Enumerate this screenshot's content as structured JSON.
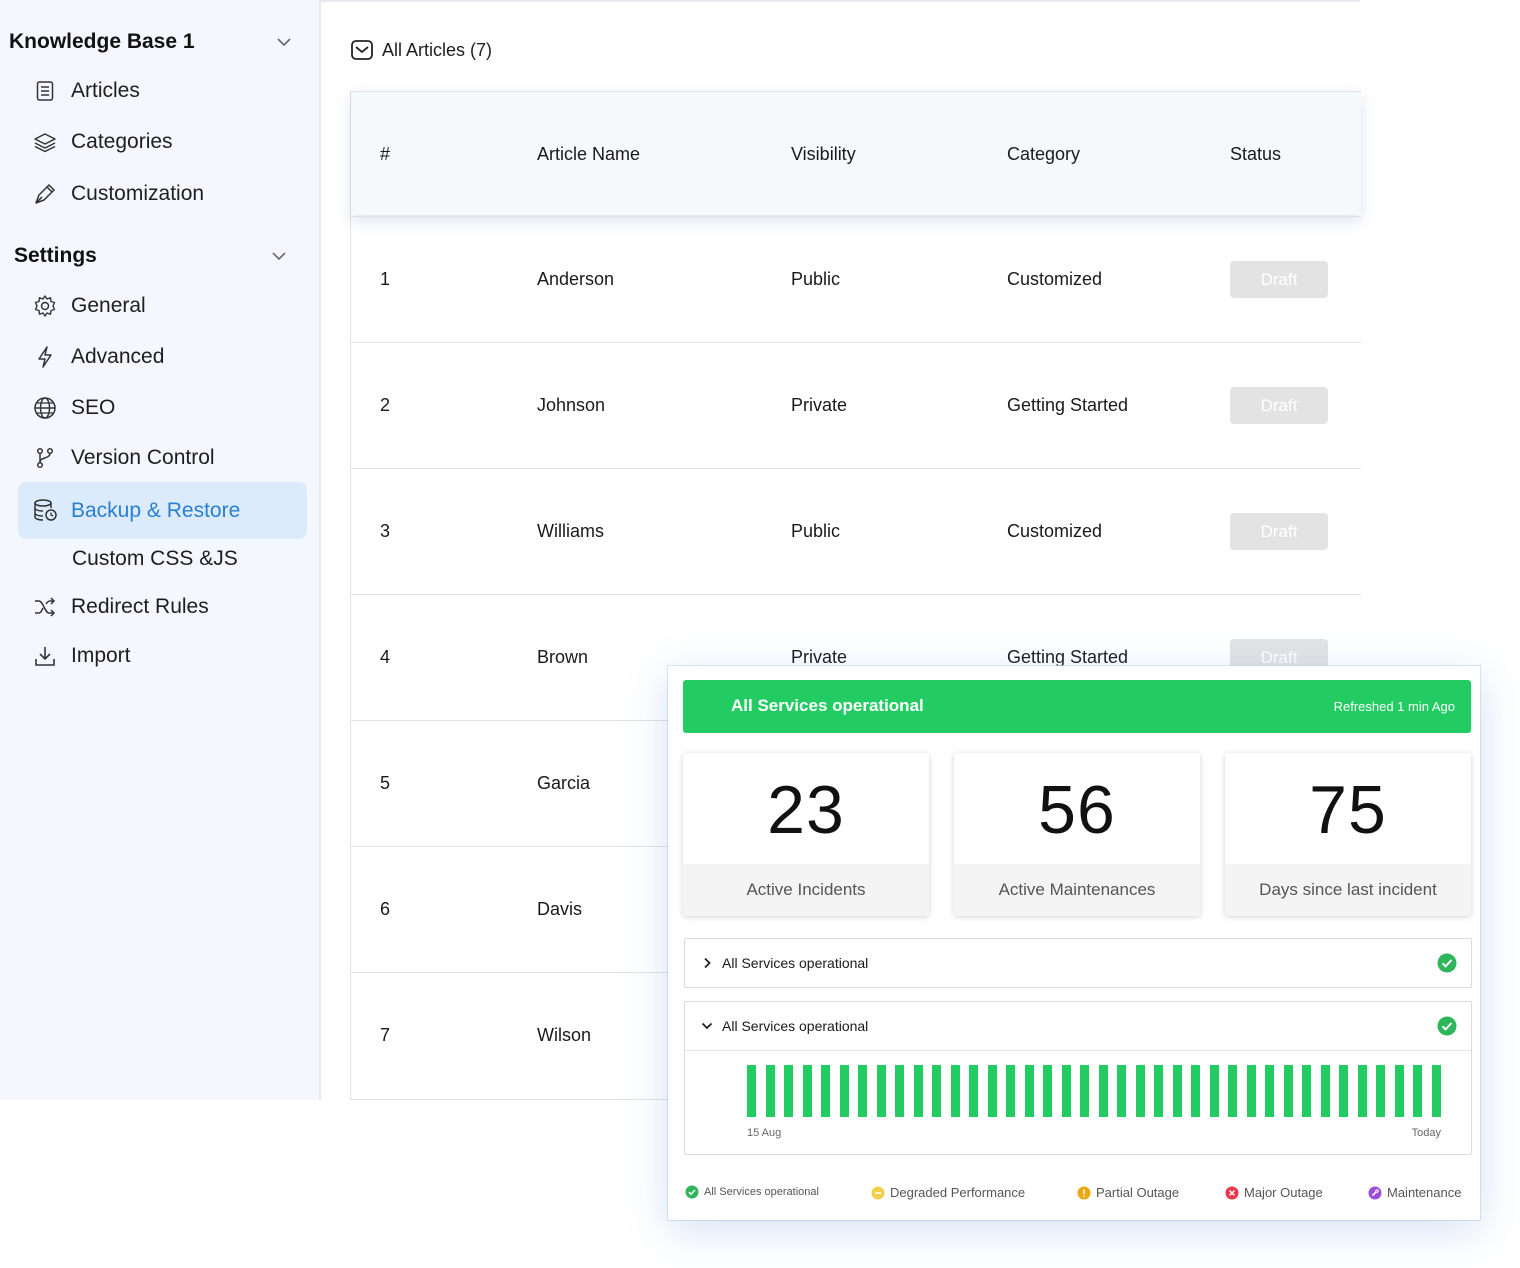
{
  "sidebar": {
    "kb_title": "Knowledge Base 1",
    "kb_items": [
      {
        "label": "Articles",
        "icon": "document-list-icon"
      },
      {
        "label": "Categories",
        "icon": "layers-icon"
      },
      {
        "label": "Customization",
        "icon": "pen-nib-icon"
      }
    ],
    "settings_title": "Settings",
    "settings_items": [
      {
        "label": "General",
        "icon": "gear-icon"
      },
      {
        "label": "Advanced",
        "icon": "lightning-icon"
      },
      {
        "label": "SEO",
        "icon": "globe-icon"
      },
      {
        "label": "Version Control",
        "icon": "git-branch-icon"
      },
      {
        "label": "Backup & Restore",
        "icon": "database-icon",
        "active": true
      },
      {
        "label": "Custom CSS &JS",
        "icon": ""
      },
      {
        "label": "Redirect Rules",
        "icon": "shuffle-icon"
      },
      {
        "label": "Import",
        "icon": "download-icon"
      }
    ],
    "active_color": "#2a7fd4"
  },
  "main": {
    "all_articles_label": "All Articles (7)",
    "columns": [
      "#",
      "Article Name",
      "Visibility",
      "Category",
      "Status"
    ],
    "rows": [
      {
        "num": "1",
        "name": "Anderson",
        "visibility": "Public",
        "category": "Customized",
        "status": "Draft"
      },
      {
        "num": "2",
        "name": "Johnson",
        "visibility": "Private",
        "category": "Getting Started",
        "status": "Draft"
      },
      {
        "num": "3",
        "name": "Williams",
        "visibility": "Public",
        "category": "Customized",
        "status": "Draft"
      },
      {
        "num": "4",
        "name": "Brown",
        "visibility": "Private",
        "category": "Getting Started",
        "status": "Draft"
      },
      {
        "num": "5",
        "name": "Garcia",
        "visibility": "",
        "category": "",
        "status": ""
      },
      {
        "num": "6",
        "name": "Davis",
        "visibility": "",
        "category": "",
        "status": ""
      },
      {
        "num": "7",
        "name": "Wilson",
        "visibility": "",
        "category": "",
        "status": ""
      }
    ]
  },
  "status_widget": {
    "banner_title": "All Services operational",
    "banner_refresh": "Refreshed 1 min Ago",
    "banner_color": "#22cc63",
    "stats": [
      {
        "value": "23",
        "label": "Active Incidents"
      },
      {
        "value": "56",
        "label": "Active Maintenances"
      },
      {
        "value": "75",
        "label": "Days since last incident"
      }
    ],
    "accordions": [
      {
        "label": "All Services operational",
        "expanded": false
      },
      {
        "label": "All Services operational",
        "expanded": true
      }
    ],
    "uptime_bar_count": 38,
    "uptime_start_label": "15 Aug",
    "uptime_end_label": "Today",
    "legend": [
      {
        "label": "All Services operational",
        "color": "#2fb55a"
      },
      {
        "label": "Degraded Performance",
        "color": "#f2cf4a"
      },
      {
        "label": "Partial Outage",
        "color": "#f0a60f"
      },
      {
        "label": "Major Outage",
        "color": "#e53949"
      },
      {
        "label": "Maintenance",
        "color": "#9b4fd8"
      }
    ]
  }
}
